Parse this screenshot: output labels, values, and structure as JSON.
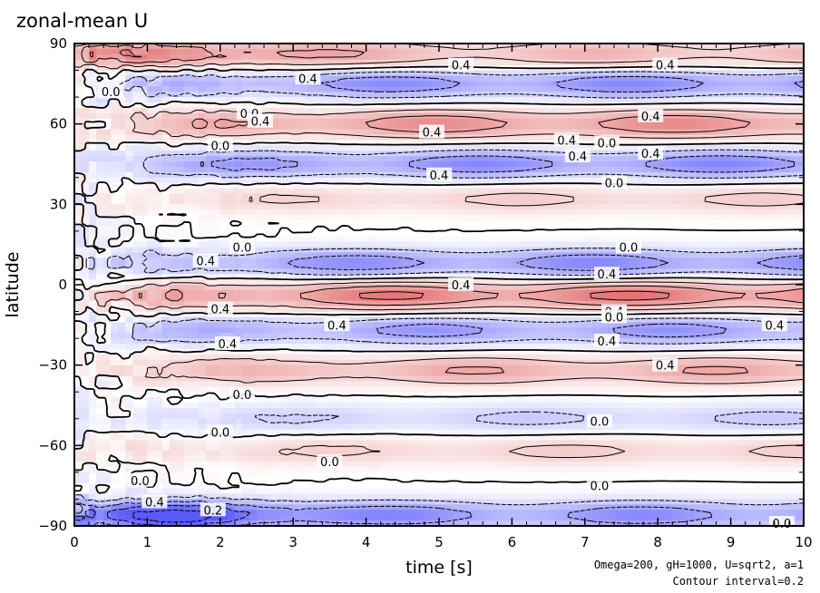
{
  "chart_data": {
    "type": "heatmap",
    "title": "zonal-mean U",
    "xlabel": "time [s]",
    "ylabel": "latitude",
    "xlim": [
      0,
      10
    ],
    "ylim": [
      -90,
      90
    ],
    "x_ticks": [
      0,
      1,
      2,
      3,
      4,
      5,
      6,
      7,
      8,
      9,
      10
    ],
    "y_ticks": [
      {
        "value": 90,
        "label": "90"
      },
      {
        "value": 60,
        "label": "60"
      },
      {
        "value": 30,
        "label": "30"
      },
      {
        "value": 0,
        "label": "0"
      },
      {
        "value": -30,
        "label": "−30"
      },
      {
        "value": -60,
        "label": "−60"
      },
      {
        "value": -90,
        "label": "−90"
      }
    ],
    "contour_interval": 0.2,
    "colors": {
      "positive": "#e06060",
      "negative": "#5a5aff",
      "zero": "#ffffff"
    },
    "bands": [
      {
        "lat": 86,
        "amp": 0.55,
        "growth": "early"
      },
      {
        "lat": 75,
        "amp": -0.45
      },
      {
        "lat": 60,
        "amp": 0.45
      },
      {
        "lat": 45,
        "amp": -0.45
      },
      {
        "lat": 32,
        "amp": 0.2
      },
      {
        "lat": 8,
        "amp": -0.45
      },
      {
        "lat": -4,
        "amp": 0.55
      },
      {
        "lat": -17,
        "amp": -0.4
      },
      {
        "lat": -32,
        "amp": 0.35
      },
      {
        "lat": -50,
        "amp": -0.2
      },
      {
        "lat": -62,
        "amp": 0.2
      },
      {
        "lat": -86,
        "amp": -0.8,
        "growth": "early"
      }
    ],
    "contour_labels": [
      {
        "text": "0.4",
        "t": 5.3,
        "lat": 82
      },
      {
        "text": "0.4",
        "t": 8.1,
        "lat": 82
      },
      {
        "text": "0.4",
        "t": 3.2,
        "lat": 77
      },
      {
        "text": "0.0",
        "t": 0.5,
        "lat": 72
      },
      {
        "text": "0.0",
        "t": 2.4,
        "lat": 64
      },
      {
        "text": "0.4",
        "t": 2.55,
        "lat": 61
      },
      {
        "text": "0.4",
        "t": 4.9,
        "lat": 57
      },
      {
        "text": "0.4",
        "t": 7.9,
        "lat": 63
      },
      {
        "text": "0.4",
        "t": 6.75,
        "lat": 54
      },
      {
        "text": "0.0",
        "t": 7.3,
        "lat": 53
      },
      {
        "text": "0.4",
        "t": 6.9,
        "lat": 48
      },
      {
        "text": "0.4",
        "t": 7.9,
        "lat": 49
      },
      {
        "text": "0.0",
        "t": 2.0,
        "lat": 52
      },
      {
        "text": "0.4",
        "t": 5.0,
        "lat": 41
      },
      {
        "text": "0.0",
        "t": 7.4,
        "lat": 38
      },
      {
        "text": "0.0",
        "t": 2.3,
        "lat": 14
      },
      {
        "text": "0.0",
        "t": 7.6,
        "lat": 14
      },
      {
        "text": "0.4",
        "t": 1.8,
        "lat": 9
      },
      {
        "text": "0.4",
        "t": 7.3,
        "lat": 4
      },
      {
        "text": "0.4",
        "t": 5.3,
        "lat": 0
      },
      {
        "text": "0.4",
        "t": 2.0,
        "lat": -9
      },
      {
        "text": "0.4",
        "t": 7.4,
        "lat": -10
      },
      {
        "text": "0.0",
        "t": 7.4,
        "lat": -12
      },
      {
        "text": "0.4",
        "t": 3.6,
        "lat": -15
      },
      {
        "text": "0.4",
        "t": 9.6,
        "lat": -15
      },
      {
        "text": "0.4",
        "t": 2.1,
        "lat": -22
      },
      {
        "text": "0.4",
        "t": 7.3,
        "lat": -21
      },
      {
        "text": "0.4",
        "t": 8.1,
        "lat": -30
      },
      {
        "text": "0.0",
        "t": 2.3,
        "lat": -41
      },
      {
        "text": "0.0",
        "t": 7.2,
        "lat": -51
      },
      {
        "text": "0.0",
        "t": 2.0,
        "lat": -55
      },
      {
        "text": "0.0",
        "t": 3.5,
        "lat": -66
      },
      {
        "text": "0.0",
        "t": 0.9,
        "lat": -73
      },
      {
        "text": "0.4",
        "t": 1.1,
        "lat": -81
      },
      {
        "text": "0.2",
        "t": 1.9,
        "lat": -84
      },
      {
        "text": "0.0",
        "t": 7.2,
        "lat": -75
      },
      {
        "text": "0.0",
        "t": 9.7,
        "lat": -89
      }
    ]
  },
  "footnote": {
    "line1": "Omega=200, gH=1000, U=sqrt2, a=1",
    "line2": "Contour interval=0.2"
  }
}
